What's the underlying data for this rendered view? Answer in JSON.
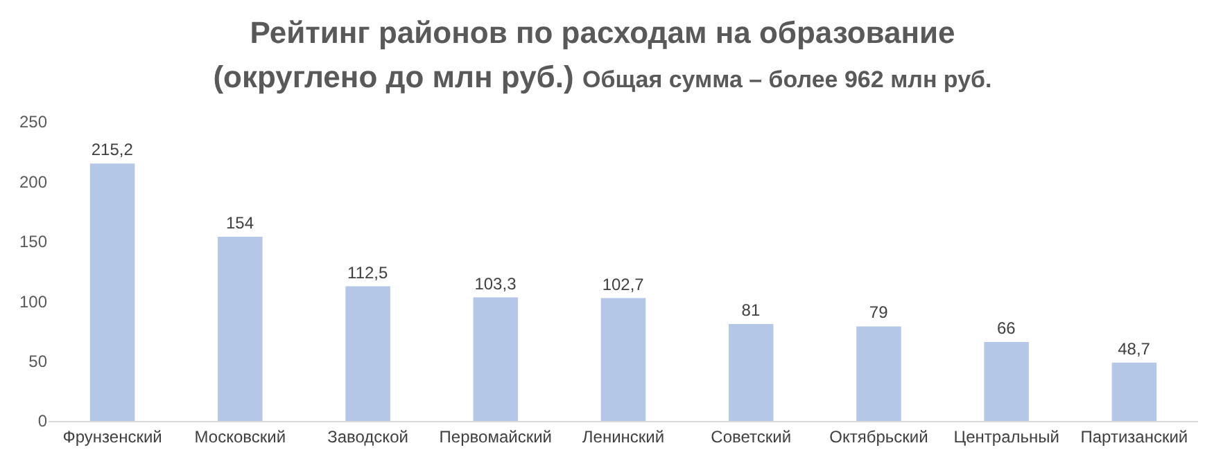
{
  "chart_data": {
    "type": "bar",
    "title": "Рейтинг районов по расходам на образование (округлено до млн руб.)",
    "subtitle": "Общая сумма – более 962 млн руб.",
    "categories": [
      "Фрунзенский",
      "Московский",
      "Заводской",
      "Первомайский",
      "Ленинский",
      "Советский",
      "Октябрьский",
      "Центральный",
      "Партизанский"
    ],
    "values": [
      215.2,
      154,
      112.5,
      103.3,
      102.7,
      81,
      79,
      66,
      48.7
    ],
    "value_labels": [
      "215,2",
      "154",
      "112,5",
      "103,3",
      "102,7",
      "81",
      "79",
      "66",
      "48,7"
    ],
    "color": "#b4c7e7",
    "ylim": [
      0,
      250
    ],
    "yticks": [
      0,
      50,
      100,
      150,
      200,
      250
    ],
    "grid": false
  }
}
